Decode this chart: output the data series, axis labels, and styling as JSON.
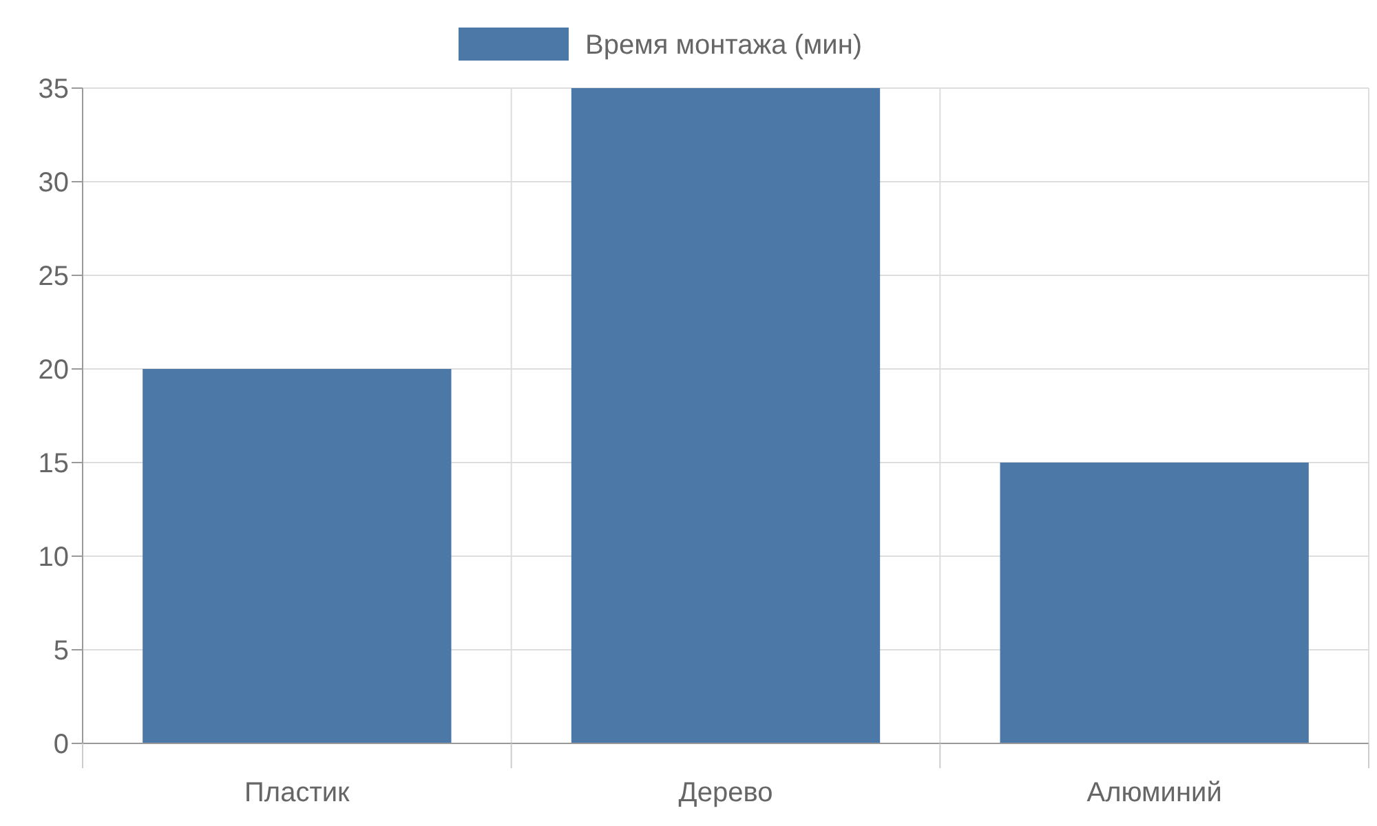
{
  "chart_data": {
    "type": "bar",
    "categories": [
      "Пластик",
      "Дерево",
      "Алюминий"
    ],
    "series": [
      {
        "name": "Время монтажа (мин)",
        "color": "#4c78a8",
        "values": [
          20,
          35,
          15
        ]
      }
    ],
    "ylim": [
      0,
      35
    ],
    "yticks": [
      0,
      5,
      10,
      15,
      20,
      25,
      30,
      35
    ],
    "grid": true,
    "legend": "top"
  }
}
